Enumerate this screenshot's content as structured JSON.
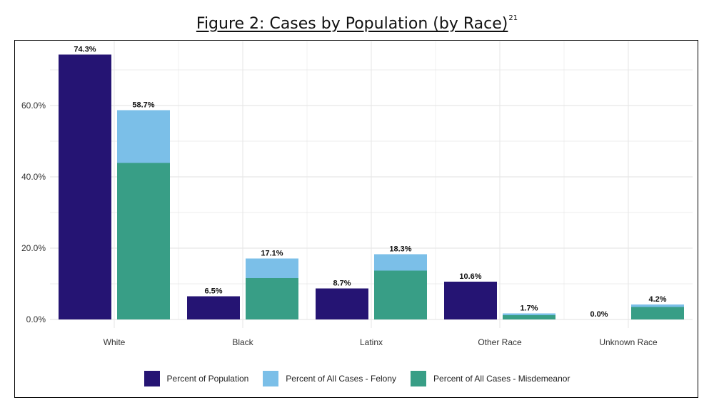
{
  "figure": {
    "title": "Figure 2: Cases by Population (by Race)",
    "footnote": "21"
  },
  "colors": {
    "population": "#251473",
    "felony": "#7bbfe8",
    "misdemeanor": "#389e86",
    "grid": "#e6e6e6"
  },
  "chart_data": {
    "type": "bar",
    "categories": [
      "White",
      "Black",
      "Latinx",
      "Other Race",
      "Unknown Race"
    ],
    "series": [
      {
        "name": "Percent of Population",
        "values": [
          74.3,
          6.5,
          8.7,
          10.6,
          0.0
        ]
      },
      {
        "name": "Percent of All Cases - Felony",
        "values": [
          14.8,
          5.5,
          4.6,
          0.5,
          0.7
        ]
      },
      {
        "name": "Percent of All Cases - Misdemeanor",
        "values": [
          43.9,
          11.6,
          13.7,
          1.2,
          3.5
        ]
      }
    ],
    "stacked_total_labels": [
      "58.7%",
      "17.1%",
      "18.3%",
      "1.7%",
      "4.2%"
    ],
    "population_labels": [
      "74.3%",
      "6.5%",
      "8.7%",
      "10.6%",
      "0.0%"
    ],
    "y_ticks": [
      "0.0%",
      "20.0%",
      "40.0%",
      "60.0%"
    ],
    "ylim": [
      0,
      78
    ],
    "grid": true,
    "legend_position": "bottom"
  },
  "legend": [
    {
      "label": "Percent of Population",
      "color_key": "population"
    },
    {
      "label": "Percent of All Cases - Felony",
      "color_key": "felony"
    },
    {
      "label": "Percent of All Cases - Misdemeanor",
      "color_key": "misdemeanor"
    }
  ]
}
